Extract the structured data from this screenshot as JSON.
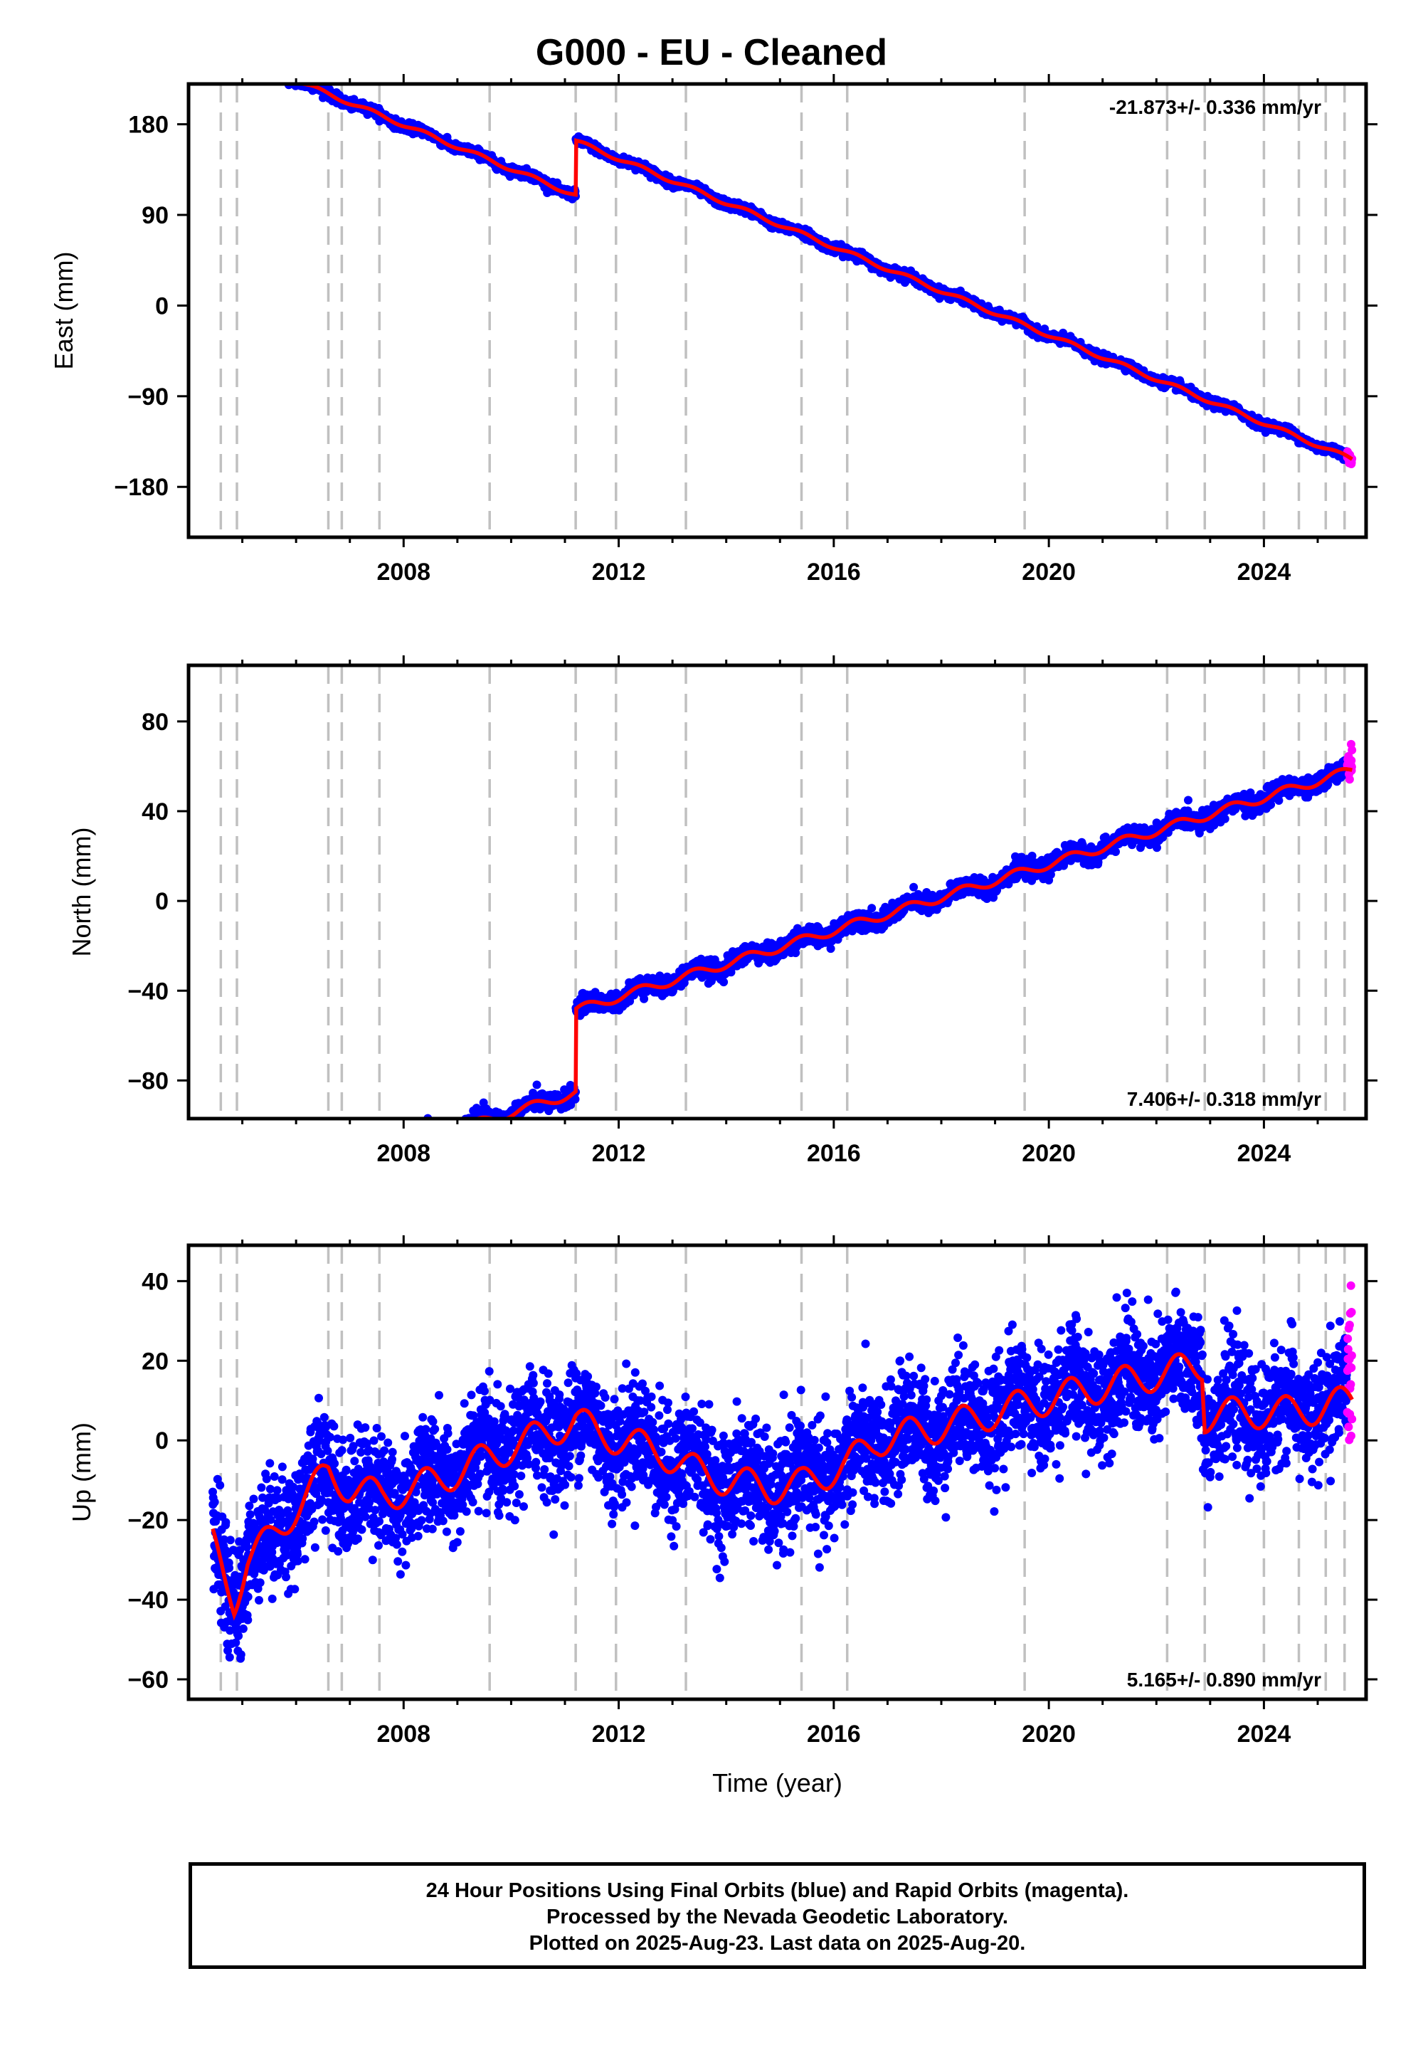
{
  "title": "G000  - EU - Cleaned",
  "footer": {
    "line1": "24 Hour Positions Using Final Orbits (blue) and Rapid Orbits (magenta).",
    "line2": "Processed by the Nevada Geodetic Laboratory.",
    "line3": "Plotted on 2025-Aug-23. Last data on 2025-Aug-20."
  },
  "colors": {
    "final_orbits": "#0000ff",
    "rapid_orbits": "#ff00ff",
    "model": "#ff0000",
    "event_lines": "#c0c0c0"
  },
  "chart_data": [
    {
      "type": "scatter",
      "ylabel": "East (mm)",
      "xlabel": "",
      "rate_label": "-21.873+/- 0.336 mm/yr",
      "rate_position": "top-right",
      "xlim": [
        2004.0,
        2025.9
      ],
      "ylim": [
        -230,
        220
      ],
      "xticks": [
        2008,
        2012,
        2016,
        2020,
        2024
      ],
      "yticks": [
        180,
        90,
        0,
        -90,
        -180
      ],
      "ytick_labels": [
        "180",
        "90",
        "0",
        "−90",
        "−180"
      ],
      "event_lines": [
        2004.6,
        2004.9,
        2006.6,
        2006.85,
        2007.55,
        2009.6,
        2011.2,
        2011.95,
        2013.25,
        2015.4,
        2016.25,
        2019.55,
        2022.2,
        2022.9,
        2024.0,
        2024.65,
        2025.15,
        2025.5
      ],
      "segments": [
        {
          "from": 2004.4,
          "to": 2011.2,
          "offset": 48.2
        },
        {
          "from": 2011.2,
          "to": 2025.62,
          "offset": 102.0
        }
      ],
      "slope": -21.873,
      "ref_year": 2014.0,
      "seasonal_amp": 2.0,
      "noise": 2.2,
      "rapid_range": [
        2025.55,
        2025.64
      ],
      "rapid_offset": -4.0
    },
    {
      "type": "scatter",
      "ylabel": "North (mm)",
      "xlabel": "",
      "rate_label": "7.406+/- 0.318 mm/yr",
      "rate_position": "bottom-right",
      "xlim": [
        2004.0,
        2025.9
      ],
      "ylim": [
        -97,
        105
      ],
      "xticks": [
        2008,
        2012,
        2016,
        2020,
        2024
      ],
      "yticks": [
        80,
        40,
        0,
        -40,
        -80
      ],
      "ytick_labels": [
        "80",
        "40",
        "0",
        "−40",
        "−80"
      ],
      "event_lines": [
        2004.6,
        2004.9,
        2006.6,
        2006.85,
        2007.55,
        2009.6,
        2011.2,
        2011.95,
        2013.25,
        2015.4,
        2016.25,
        2019.55,
        2022.2,
        2022.9,
        2024.0,
        2024.65,
        2025.15,
        2025.5
      ],
      "segments": [
        {
          "from": 2004.4,
          "to": 2004.65,
          "offset": -35.0
        },
        {
          "from": 2004.65,
          "to": 2011.2,
          "offset": -64.8
        },
        {
          "from": 2011.2,
          "to": 2025.62,
          "offset": -28.0
        }
      ],
      "slope": 7.406,
      "ref_year": 2014.0,
      "seasonal_amp": 2.0,
      "noise": 2.0,
      "rapid_range": [
        2025.55,
        2025.64
      ],
      "rapid_offset": 5.0
    },
    {
      "type": "scatter",
      "ylabel": "Up (mm)",
      "xlabel": "Time (year)",
      "rate_label": "5.165+/- 0.890 mm/yr",
      "rate_position": "bottom-right",
      "xlim": [
        2004.0,
        2025.9
      ],
      "ylim": [
        -65,
        49
      ],
      "xticks": [
        2008,
        2012,
        2016,
        2020,
        2024
      ],
      "yticks": [
        40,
        20,
        0,
        -20,
        -40,
        -60
      ],
      "ytick_labels": [
        "40",
        "20",
        "0",
        "−20",
        "−40",
        "−60"
      ],
      "event_lines": [
        2004.6,
        2004.9,
        2006.6,
        2006.85,
        2007.55,
        2009.6,
        2011.2,
        2011.95,
        2013.25,
        2015.4,
        2016.25,
        2019.55,
        2022.2,
        2022.9,
        2024.0,
        2024.65,
        2025.15,
        2025.5
      ],
      "model_knots": [
        [
          2004.45,
          -26
        ],
        [
          2004.7,
          -35
        ],
        [
          2004.85,
          -40
        ],
        [
          2005.1,
          -30
        ],
        [
          2005.5,
          -25
        ],
        [
          2006.0,
          -17
        ],
        [
          2006.6,
          -8
        ],
        [
          2007.0,
          -12
        ],
        [
          2007.6,
          -14
        ],
        [
          2008.2,
          -12
        ],
        [
          2009.0,
          -8
        ],
        [
          2009.6,
          -4
        ],
        [
          2010.5,
          1
        ],
        [
          2011.2,
          5
        ],
        [
          2011.6,
          2
        ],
        [
          2012.3,
          -1
        ],
        [
          2012.8,
          -3
        ],
        [
          2013.3,
          -7
        ],
        [
          2014.0,
          -10
        ],
        [
          2014.8,
          -12
        ],
        [
          2015.4,
          -11
        ],
        [
          2016.25,
          -6
        ],
        [
          2016.8,
          0
        ],
        [
          2017.5,
          2
        ],
        [
          2018.5,
          5
        ],
        [
          2019.55,
          9
        ],
        [
          2020.5,
          12
        ],
        [
          2021.5,
          15
        ],
        [
          2022.2,
          17
        ],
        [
          2022.85,
          19
        ],
        [
          2022.9,
          6
        ],
        [
          2023.5,
          7
        ],
        [
          2024.3,
          7
        ],
        [
          2025.0,
          8
        ],
        [
          2025.6,
          10
        ]
      ],
      "seasonal_amp": 4.0,
      "noise": 7.0,
      "rapid_range": [
        2025.55,
        2025.64
      ],
      "rapid_offset": 12.0
    }
  ]
}
